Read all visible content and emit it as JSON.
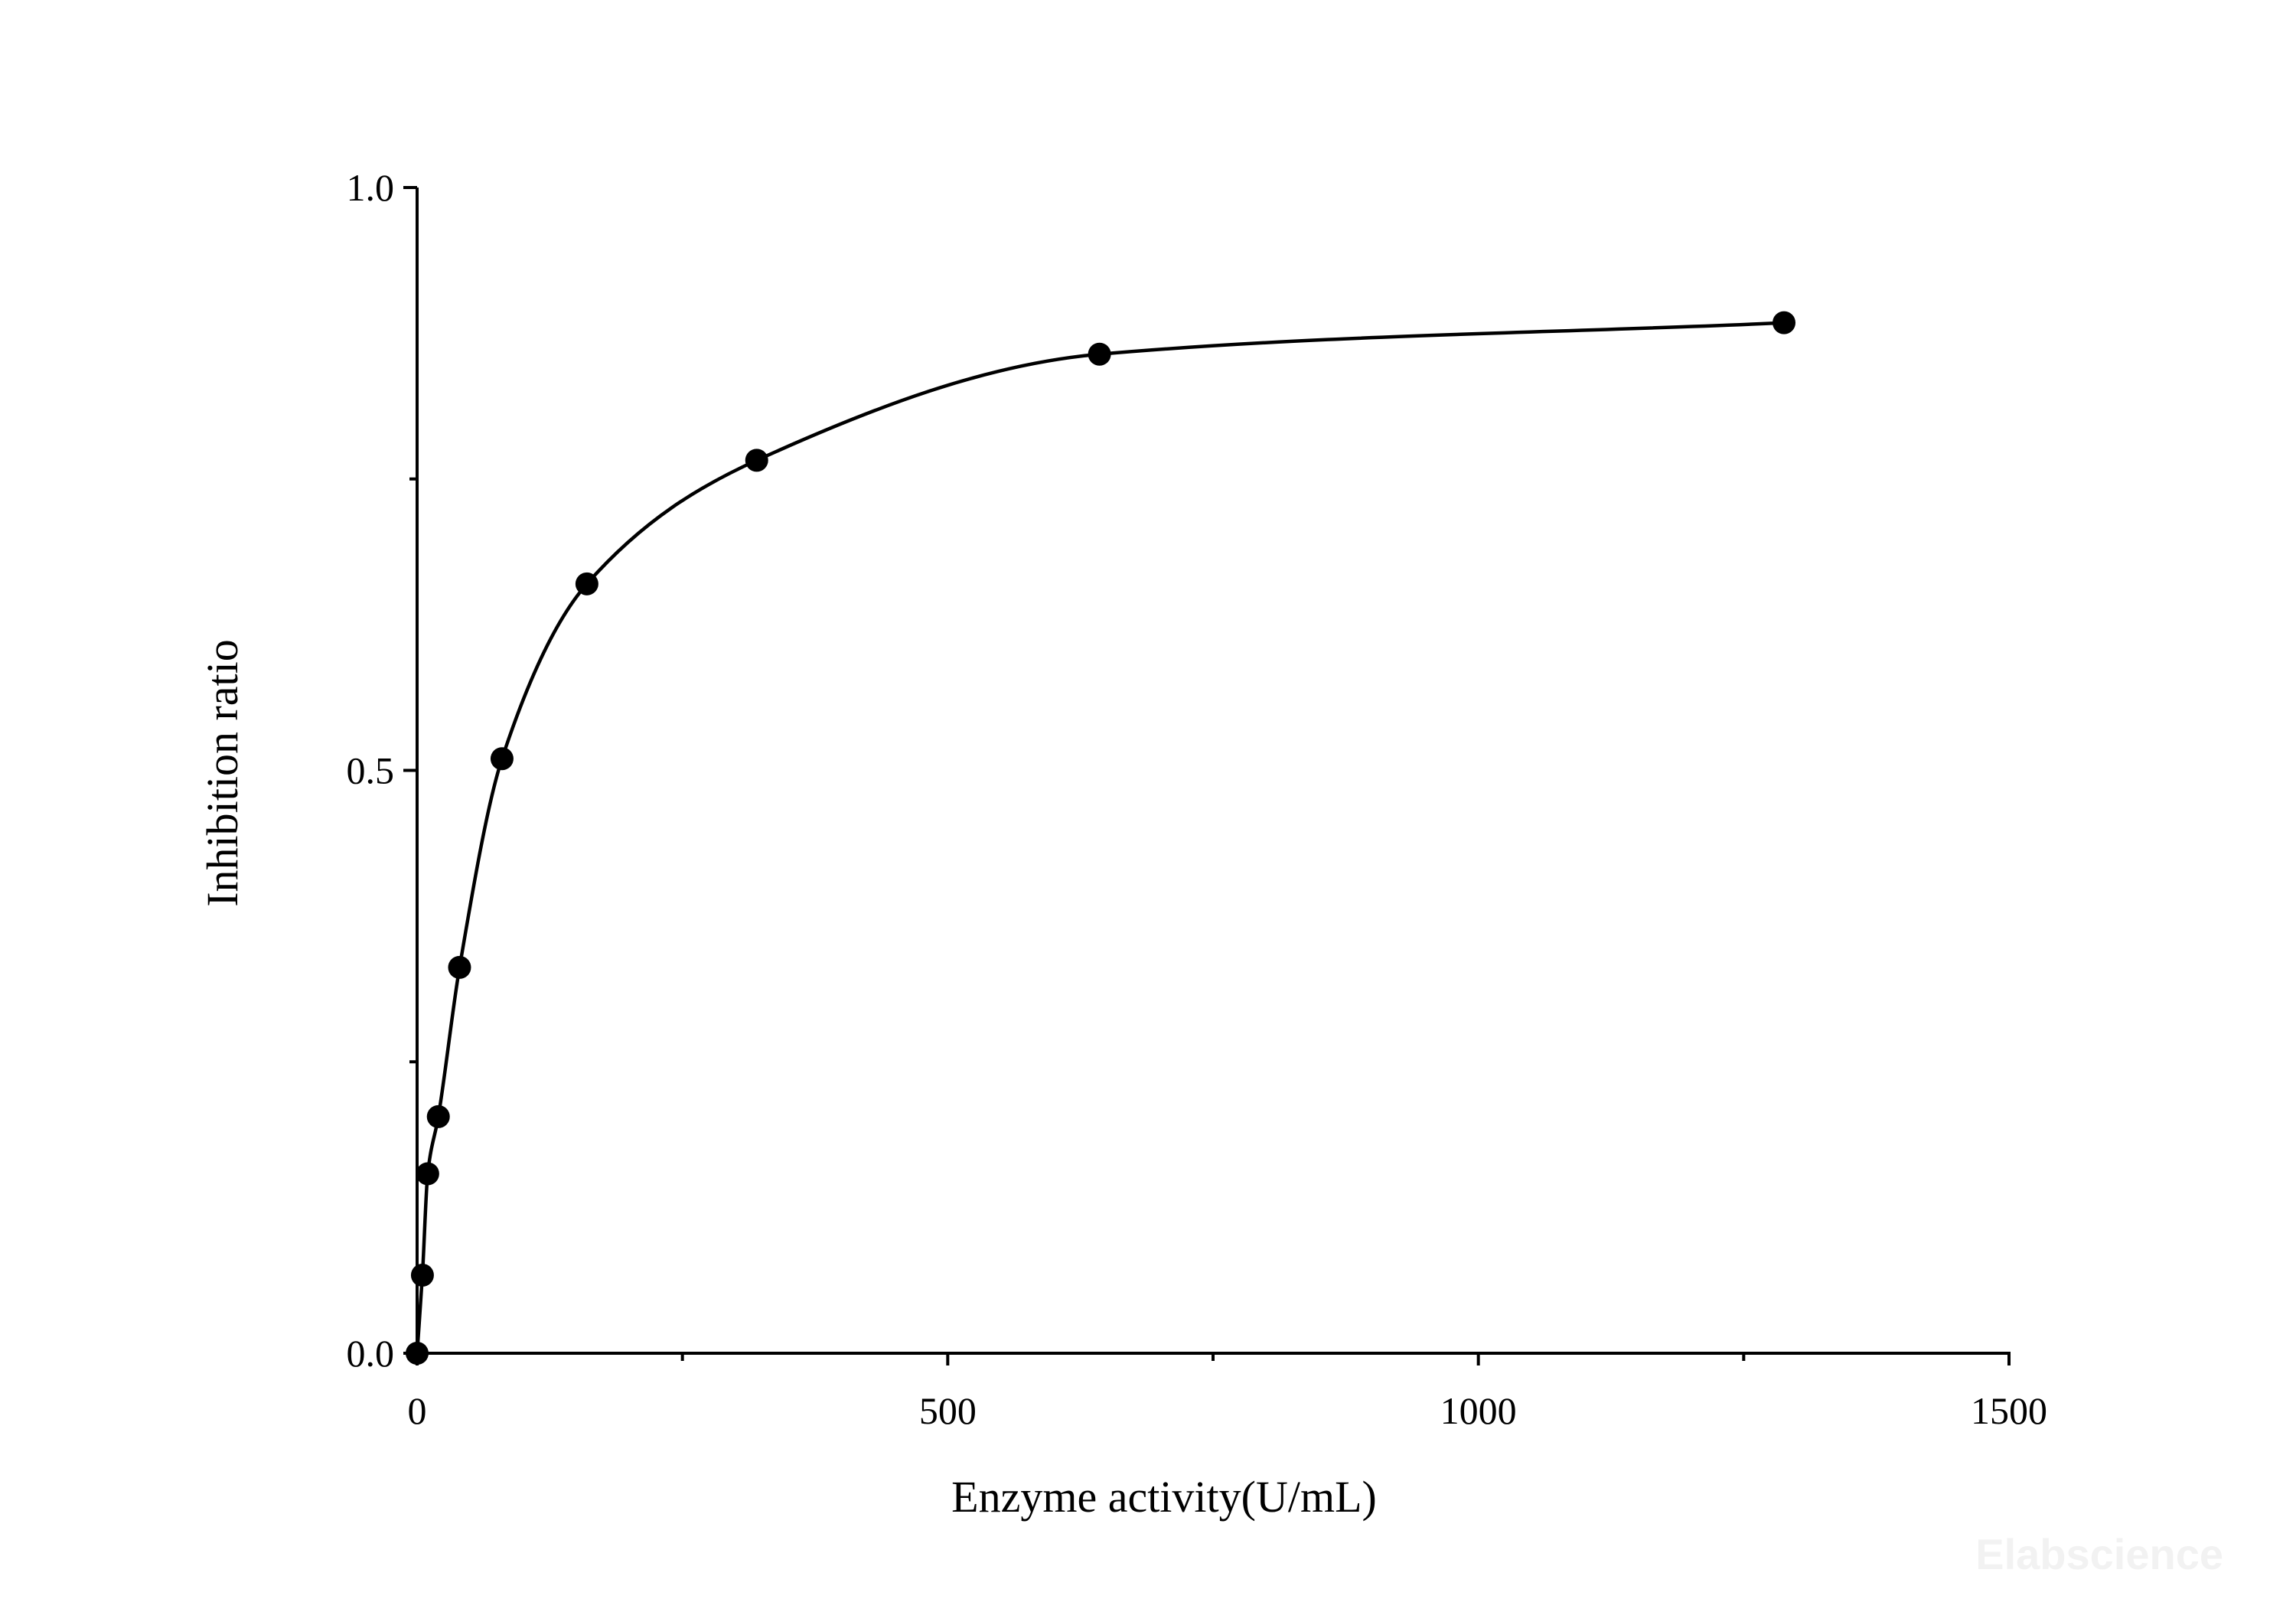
{
  "chart_data": {
    "type": "scatter",
    "xlabel": "Enzyme activity(U/mL)",
    "ylabel": "Inhibition ratio",
    "xlim": [
      0,
      1500
    ],
    "ylim": [
      0,
      1.0
    ],
    "x_ticks": [
      0,
      500,
      1000,
      1500
    ],
    "x_tick_labels": [
      "0",
      "500",
      "1000",
      "1500"
    ],
    "x_minor_ticks": [
      250,
      750,
      1250
    ],
    "y_ticks": [
      0.0,
      0.5,
      1.0
    ],
    "y_tick_labels": [
      "0.0",
      "0.5",
      "1.0"
    ],
    "y_minor_ticks": [
      0.25,
      0.75
    ],
    "grid": false,
    "legend": "none",
    "series": [
      {
        "points": [
          {
            "x": 0,
            "y": 0.0
          },
          {
            "x": 5,
            "y": 0.067
          },
          {
            "x": 10,
            "y": 0.154
          },
          {
            "x": 20,
            "y": 0.203
          },
          {
            "x": 40,
            "y": 0.331
          },
          {
            "x": 80,
            "y": 0.51
          },
          {
            "x": 160,
            "y": 0.66
          },
          {
            "x": 320,
            "y": 0.766
          },
          {
            "x": 643,
            "y": 0.857
          },
          {
            "x": 1288,
            "y": 0.884
          }
        ],
        "fit_curve": true,
        "marker": "filled-circle",
        "color": "#000000"
      }
    ],
    "watermark": "Elabscience"
  }
}
